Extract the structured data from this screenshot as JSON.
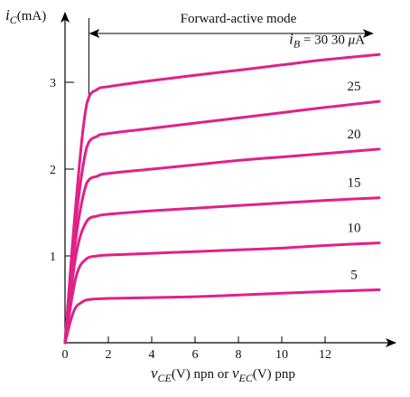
{
  "chart_data": {
    "type": "line",
    "title": "",
    "x_axis": {
      "label_var": "v",
      "label_var_sub": "CE",
      "label_mid": "(V) npn or ",
      "label_var2": "v",
      "label_var2_sub": "EC",
      "label_tail": "(V) pnp",
      "range": [
        0,
        14
      ],
      "ticks": [
        0,
        2,
        4,
        6,
        8,
        10,
        12
      ],
      "tick_labels": [
        "0",
        "2",
        "4",
        "6",
        "8",
        "10",
        "12"
      ]
    },
    "y_axis": {
      "label_var": "i",
      "label_var_sub": "C",
      "label_unit": "(mA)",
      "range": [
        0,
        3.6
      ],
      "ticks": [
        1,
        2,
        3
      ],
      "tick_labels": [
        "1",
        "2",
        "3"
      ]
    },
    "region_annotation": {
      "text": "Forward-active mode",
      "x_start": 1.1,
      "x_end": 14.2
    },
    "curve_color": "#e0218a",
    "series_param_label": {
      "var": "i",
      "sub": "B",
      "eq": " = 30 ",
      "mu": "μ",
      "unit": "A"
    },
    "series": [
      {
        "name": "30",
        "ib_uA": 30,
        "x": [
          0,
          0.5,
          1.0,
          1.5,
          2.0,
          4,
          6,
          8,
          10,
          12,
          14.5
        ],
        "y": [
          0,
          1.6,
          2.75,
          2.92,
          2.95,
          3.02,
          3.08,
          3.14,
          3.2,
          3.26,
          3.32
        ]
      },
      {
        "name": "25",
        "ib_uA": 25,
        "x": [
          0,
          0.5,
          1.0,
          1.5,
          2.0,
          4,
          6,
          8,
          10,
          12,
          14.5
        ],
        "y": [
          0,
          1.4,
          2.25,
          2.38,
          2.41,
          2.47,
          2.53,
          2.59,
          2.65,
          2.71,
          2.78
        ]
      },
      {
        "name": "20",
        "ib_uA": 20,
        "x": [
          0,
          0.5,
          1.0,
          1.5,
          2.0,
          4,
          6,
          8,
          10,
          12,
          14.5
        ],
        "y": [
          0,
          1.2,
          1.84,
          1.92,
          1.95,
          2.0,
          2.05,
          2.1,
          2.14,
          2.18,
          2.23
        ]
      },
      {
        "name": "15",
        "ib_uA": 15,
        "x": [
          0,
          0.5,
          1.0,
          1.5,
          2.0,
          4,
          6,
          8,
          10,
          12,
          14.5
        ],
        "y": [
          0,
          1.0,
          1.4,
          1.46,
          1.48,
          1.52,
          1.55,
          1.58,
          1.61,
          1.64,
          1.67
        ]
      },
      {
        "name": "10",
        "ib_uA": 10,
        "x": [
          0,
          0.5,
          1.0,
          1.5,
          2.0,
          4,
          6,
          8,
          10,
          12,
          14.5
        ],
        "y": [
          0,
          0.75,
          0.97,
          1.0,
          1.01,
          1.03,
          1.05,
          1.07,
          1.09,
          1.12,
          1.15
        ]
      },
      {
        "name": "5",
        "ib_uA": 5,
        "x": [
          0,
          0.4,
          0.8,
          1.2,
          2.0,
          4,
          6,
          8,
          10,
          12,
          14.5
        ],
        "y": [
          0,
          0.36,
          0.47,
          0.5,
          0.51,
          0.52,
          0.53,
          0.55,
          0.57,
          0.59,
          0.61
        ]
      }
    ],
    "grid": false,
    "legend": "none"
  }
}
